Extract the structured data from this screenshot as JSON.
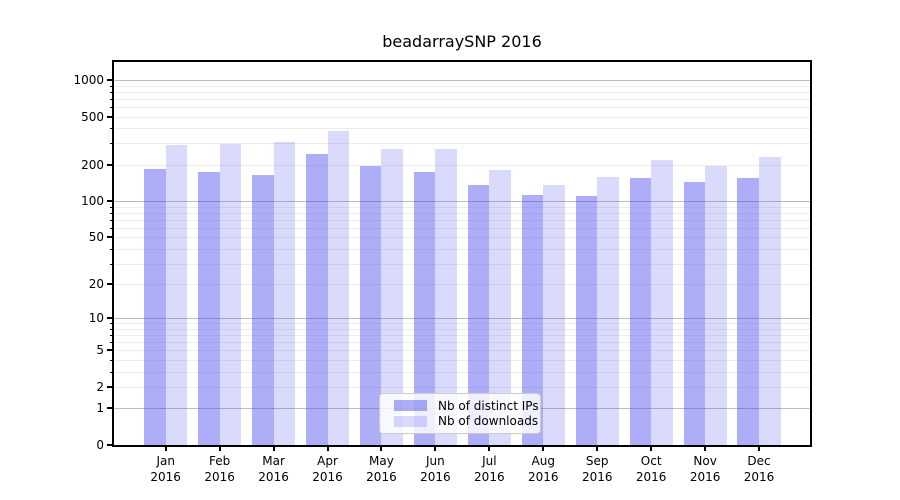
{
  "chart_data": {
    "type": "bar",
    "title": "beadarraySNP 2016",
    "y_scale": "log10(1+x)",
    "ylim": [
      0,
      1400
    ],
    "grid": "on",
    "legend_position": "lower-center-inside",
    "categories": [
      "Jan",
      "Feb",
      "Mar",
      "Apr",
      "May",
      "Jun",
      "Jul",
      "Aug",
      "Sep",
      "Oct",
      "Nov",
      "Dec"
    ],
    "x_year_label": "2016",
    "series": [
      {
        "name": "Nb of distinct IPs",
        "color": "rgba(68,68,238,0.44)",
        "values": [
          184,
          176,
          165,
          244,
          195,
          175,
          136,
          112,
          110,
          155,
          145,
          157
        ]
      },
      {
        "name": "Nb of downloads",
        "color": "rgba(68,68,238,0.20)",
        "values": [
          293,
          298,
          310,
          380,
          270,
          270,
          181,
          135,
          159,
          219,
          196,
          230
        ]
      }
    ],
    "yticks": [
      0,
      1,
      2,
      5,
      10,
      20,
      50,
      100,
      200,
      500,
      1000
    ],
    "grid_major": [
      1,
      10,
      100,
      1000
    ],
    "grid_minor": [
      2,
      3,
      4,
      5,
      6,
      7,
      8,
      9,
      20,
      30,
      40,
      50,
      60,
      70,
      80,
      90,
      200,
      300,
      400,
      500,
      600,
      700,
      800,
      900
    ],
    "colors": {
      "bar_base": "#4444ee",
      "grid_major": "#bdbdbd",
      "grid_minor": "#ededed",
      "axis": "#000000",
      "legend_border": "#cccccc"
    }
  }
}
